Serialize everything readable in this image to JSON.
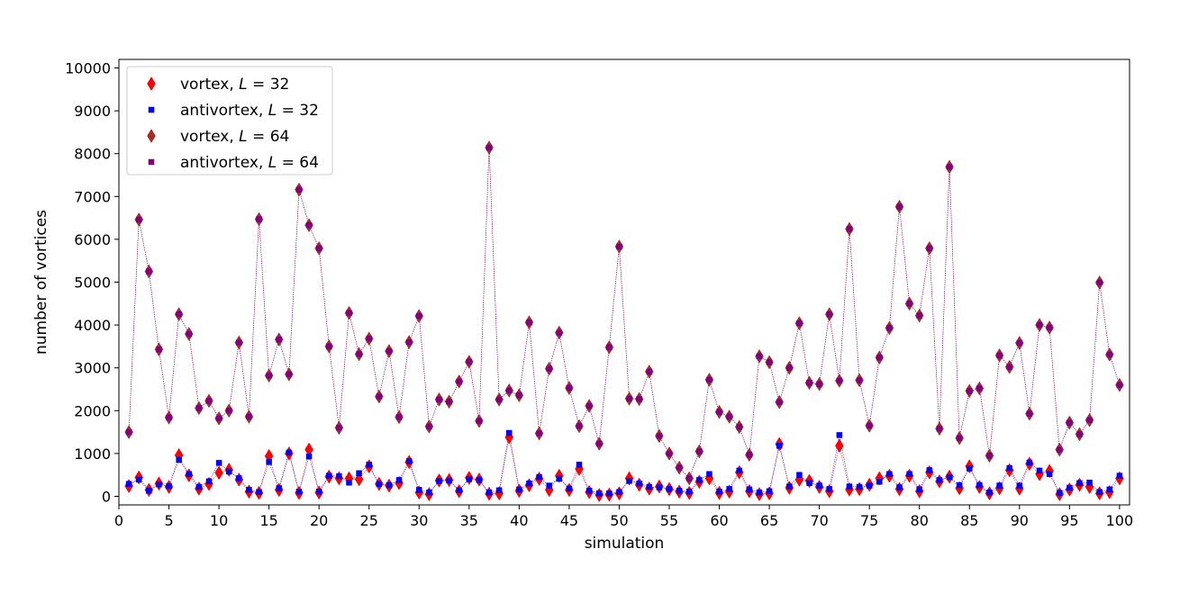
{
  "chart_data": {
    "type": "scatter",
    "xlabel": "simulation",
    "ylabel": "number of vortices",
    "xlim": [
      0,
      101
    ],
    "ylim": [
      -200,
      10200
    ],
    "xticks": [
      0,
      5,
      10,
      15,
      20,
      25,
      30,
      35,
      40,
      45,
      50,
      55,
      60,
      65,
      70,
      75,
      80,
      85,
      90,
      95,
      100
    ],
    "yticks": [
      0,
      1000,
      2000,
      3000,
      4000,
      5000,
      6000,
      7000,
      8000,
      9000,
      10000
    ],
    "legend_position": "top-left",
    "x": [
      1,
      2,
      3,
      4,
      5,
      6,
      7,
      8,
      9,
      10,
      11,
      12,
      13,
      14,
      15,
      16,
      17,
      18,
      19,
      20,
      21,
      22,
      23,
      24,
      25,
      26,
      27,
      28,
      29,
      30,
      31,
      32,
      33,
      34,
      35,
      36,
      37,
      38,
      39,
      40,
      41,
      42,
      43,
      44,
      45,
      46,
      47,
      48,
      49,
      50,
      51,
      52,
      53,
      54,
      55,
      56,
      57,
      58,
      59,
      60,
      61,
      62,
      63,
      64,
      65,
      66,
      67,
      68,
      69,
      70,
      71,
      72,
      73,
      74,
      75,
      76,
      77,
      78,
      79,
      80,
      81,
      82,
      83,
      84,
      85,
      86,
      87,
      88,
      89,
      90,
      91,
      92,
      93,
      94,
      95,
      96,
      97,
      98,
      99,
      100
    ],
    "series": [
      {
        "name": "vortex, L = 32",
        "legend_prefix": "vortex, ",
        "legend_var": "L",
        "legend_suffix": " = 32",
        "marker": "diamond",
        "color": "#ff0000",
        "values": [
          240,
          440,
          150,
          300,
          220,
          960,
          490,
          180,
          290,
          550,
          620,
          390,
          110,
          80,
          940,
          150,
          1000,
          80,
          1090,
          90,
          460,
          420,
          420,
          400,
          700,
          290,
          250,
          310,
          800,
          90,
          50,
          370,
          380,
          120,
          430,
          390,
          60,
          70,
          1380,
          130,
          260,
          410,
          150,
          480,
          150,
          640,
          100,
          30,
          40,
          70,
          420,
          270,
          180,
          230,
          170,
          110,
          80,
          340,
          420,
          80,
          110,
          560,
          120,
          50,
          70,
          1220,
          200,
          390,
          360,
          220,
          120,
          1180,
          160,
          170,
          270,
          420,
          480,
          170,
          480,
          120,
          560,
          350,
          460,
          190,
          700,
          220,
          70,
          190,
          610,
          180,
          760,
          520,
          590,
          50,
          160,
          270,
          220,
          70,
          100,
          420
        ]
      },
      {
        "name": "antivortex, L = 32",
        "legend_prefix": "antivortex, ",
        "legend_var": "L",
        "legend_suffix": " = 32",
        "marker": "square",
        "color": "#0000ff",
        "values": [
          290,
          390,
          130,
          280,
          240,
          850,
          520,
          220,
          350,
          780,
          580,
          420,
          150,
          100,
          800,
          190,
          1020,
          110,
          930,
          110,
          480,
          470,
          320,
          540,
          740,
          290,
          260,
          380,
          820,
          150,
          90,
          360,
          370,
          140,
          400,
          380,
          90,
          140,
          1480,
          160,
          300,
          450,
          250,
          410,
          180,
          740,
          130,
          70,
          70,
          100,
          360,
          300,
          220,
          210,
          170,
          130,
          110,
          380,
          520,
          110,
          170,
          600,
          160,
          90,
          120,
          1180,
          230,
          500,
          310,
          250,
          170,
          1430,
          230,
          220,
          250,
          340,
          520,
          210,
          520,
          160,
          610,
          380,
          450,
          260,
          650,
          260,
          90,
          250,
          660,
          250,
          790,
          600,
          520,
          80,
          200,
          310,
          320,
          100,
          160,
          480
        ]
      },
      {
        "name": "vortex, L = 64",
        "legend_prefix": "vortex, ",
        "legend_var": "L",
        "legend_suffix": " = 64",
        "marker": "diamond",
        "color": "#a52a2a",
        "values": [
          1500,
          6460,
          5250,
          3430,
          1840,
          4250,
          3790,
          2060,
          2230,
          1820,
          2000,
          3590,
          1860,
          6470,
          2820,
          3660,
          2850,
          7160,
          6330,
          5790,
          3500,
          1600,
          4280,
          3320,
          3680,
          2330,
          3390,
          1850,
          3600,
          4210,
          1630,
          2260,
          2210,
          2680,
          3140,
          1760,
          8140,
          2260,
          2470,
          2360,
          4060,
          1470,
          2980,
          3820,
          2530,
          1640,
          2110,
          1230,
          3480,
          5830,
          2280,
          2270,
          2910,
          1410,
          1000,
          670,
          420,
          1050,
          2720,
          1970,
          1860,
          1620,
          970,
          3270,
          3130,
          2200,
          3000,
          4040,
          2650,
          2620,
          4250,
          2700,
          6240,
          2710,
          1650,
          3240,
          3930,
          6760,
          4500,
          4220,
          5790,
          1580,
          7690,
          1360,
          2460,
          2520,
          950,
          3290,
          3020,
          3580,
          1930,
          4000,
          3940,
          1090,
          1720,
          1450,
          1780,
          4990,
          3310,
          2600
        ]
      },
      {
        "name": "antivortex, L = 64",
        "legend_prefix": "antivortex, ",
        "legend_var": "L",
        "legend_suffix": " = 64",
        "marker": "square",
        "color": "#800080",
        "values": [
          1500,
          6460,
          5250,
          3430,
          1840,
          4250,
          3790,
          2060,
          2230,
          1820,
          2000,
          3590,
          1860,
          6470,
          2820,
          3660,
          2850,
          7160,
          6330,
          5790,
          3500,
          1600,
          4280,
          3320,
          3680,
          2330,
          3390,
          1850,
          3600,
          4210,
          1630,
          2260,
          2210,
          2680,
          3140,
          1760,
          8140,
          2260,
          2470,
          2360,
          4060,
          1470,
          2980,
          3820,
          2530,
          1640,
          2110,
          1230,
          3480,
          5830,
          2280,
          2270,
          2910,
          1410,
          1000,
          670,
          420,
          1050,
          2720,
          1970,
          1860,
          1620,
          970,
          3270,
          3130,
          2200,
          3000,
          4040,
          2650,
          2620,
          4250,
          2700,
          6240,
          2710,
          1650,
          3240,
          3930,
          6760,
          4500,
          4220,
          5790,
          1580,
          7690,
          1360,
          2460,
          2520,
          950,
          3290,
          3020,
          3580,
          1930,
          4000,
          3940,
          1090,
          1720,
          1450,
          1780,
          4990,
          3310,
          2600
        ]
      }
    ]
  }
}
